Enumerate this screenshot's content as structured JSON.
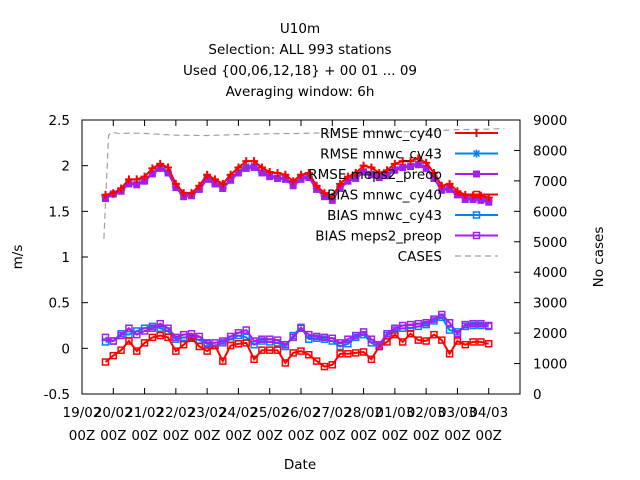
{
  "title_lines": [
    "U10m",
    "Selection: ALL    993 stations",
    "Used {00,06,12,18} + 00 01 ... 09",
    "Averaging window:  6h"
  ],
  "chart_data": {
    "type": "line",
    "xlabel": "Date",
    "ylabel": "m/s",
    "y2label": "No cases",
    "ylim": [
      -0.5,
      2.5
    ],
    "y2lim": [
      0,
      9000
    ],
    "y_ticks": [
      "-0.5",
      "0",
      "0.5",
      "1",
      "1.5",
      "2",
      "2.5"
    ],
    "y2_ticks": [
      "0",
      "1000",
      "2000",
      "3000",
      "4000",
      "5000",
      "6000",
      "7000",
      "8000",
      "9000"
    ],
    "xlim": [
      0,
      14
    ],
    "x_ticks": [
      {
        "line1": "19/02",
        "line2": "00Z"
      },
      {
        "line1": "20/02",
        "line2": "00Z"
      },
      {
        "line1": "21/02",
        "line2": "00Z"
      },
      {
        "line1": "22/02",
        "line2": "00Z"
      },
      {
        "line1": "23/02",
        "line2": "00Z"
      },
      {
        "line1": "24/02",
        "line2": "00Z"
      },
      {
        "line1": "25/02",
        "line2": "00Z"
      },
      {
        "line1": "26/02",
        "line2": "00Z"
      },
      {
        "line1": "27/02",
        "line2": "00Z"
      },
      {
        "line1": "28/02",
        "line2": "00Z"
      },
      {
        "line1": "01/03",
        "line2": "00Z"
      },
      {
        "line1": "02/03",
        "line2": "00Z"
      },
      {
        "line1": "03/03",
        "line2": "00Z"
      },
      {
        "line1": "04/03",
        "line2": "00Z"
      }
    ],
    "grid": false,
    "legend_position": "top-right",
    "x": [
      0.75,
      1.0,
      1.25,
      1.5,
      1.75,
      2.0,
      2.25,
      2.5,
      2.75,
      3.0,
      3.25,
      3.5,
      3.75,
      4.0,
      4.25,
      4.5,
      4.75,
      5.0,
      5.25,
      5.5,
      5.75,
      6.0,
      6.25,
      6.5,
      6.75,
      7.0,
      7.25,
      7.5,
      7.75,
      8.0,
      8.25,
      8.5,
      8.75,
      9.0,
      9.25,
      9.5,
      9.75,
      10.0,
      10.25,
      10.5,
      10.75,
      11.0,
      11.25,
      11.5,
      11.75,
      12.0,
      12.25,
      12.5,
      12.75,
      13.0
    ],
    "series": [
      {
        "name": "RMSE mnwc_cy40",
        "axis": "y1",
        "color": "#ff0000",
        "marker": "plus",
        "values": [
          1.68,
          1.7,
          1.75,
          1.85,
          1.85,
          1.88,
          1.97,
          2.02,
          1.98,
          1.8,
          1.7,
          1.7,
          1.78,
          1.9,
          1.85,
          1.8,
          1.9,
          1.98,
          2.05,
          2.05,
          1.98,
          1.93,
          1.92,
          1.9,
          1.83,
          1.9,
          1.92,
          1.78,
          1.7,
          1.66,
          1.8,
          1.88,
          1.92,
          2.0,
          1.98,
          1.92,
          1.95,
          2.02,
          2.05,
          2.05,
          2.08,
          2.03,
          1.92,
          1.78,
          1.8,
          1.72,
          1.68,
          1.67,
          1.67,
          1.65
        ]
      },
      {
        "name": "RMSE mnwc_cy43",
        "axis": "y1",
        "color": "#0080ff",
        "marker": "star",
        "values": [
          1.66,
          1.69,
          1.73,
          1.81,
          1.8,
          1.84,
          1.92,
          1.99,
          1.93,
          1.77,
          1.68,
          1.68,
          1.75,
          1.86,
          1.82,
          1.76,
          1.86,
          1.93,
          1.99,
          2.0,
          1.93,
          1.89,
          1.87,
          1.86,
          1.8,
          1.87,
          1.88,
          1.75,
          1.67,
          1.63,
          1.77,
          1.84,
          1.88,
          1.94,
          1.91,
          1.88,
          1.91,
          1.96,
          1.99,
          2.0,
          2.02,
          1.98,
          1.87,
          1.74,
          1.76,
          1.69,
          1.65,
          1.64,
          1.64,
          1.61
        ]
      },
      {
        "name": "RMSE meps2_preop",
        "axis": "y1",
        "color": "#a020f0",
        "marker": "filledsquare",
        "values": [
          1.64,
          1.69,
          1.72,
          1.8,
          1.79,
          1.83,
          1.91,
          1.97,
          1.92,
          1.76,
          1.66,
          1.67,
          1.74,
          1.85,
          1.8,
          1.75,
          1.84,
          1.92,
          1.97,
          1.98,
          1.92,
          1.88,
          1.86,
          1.85,
          1.78,
          1.85,
          1.87,
          1.74,
          1.66,
          1.62,
          1.75,
          1.83,
          1.86,
          1.93,
          1.9,
          1.87,
          1.89,
          1.95,
          1.98,
          1.99,
          2.01,
          1.97,
          1.86,
          1.73,
          1.74,
          1.68,
          1.63,
          1.63,
          1.62,
          1.6
        ]
      },
      {
        "name": "BIAS mnwc_cy40",
        "axis": "y1",
        "color": "#ff0000",
        "marker": "square",
        "values": [
          -0.15,
          -0.08,
          -0.02,
          0.08,
          -0.03,
          0.06,
          0.12,
          0.14,
          0.12,
          -0.03,
          0.04,
          0.11,
          0.02,
          -0.03,
          0.03,
          -0.14,
          0.03,
          0.05,
          0.06,
          -0.12,
          -0.02,
          -0.02,
          -0.02,
          -0.16,
          -0.05,
          -0.03,
          -0.07,
          -0.14,
          -0.2,
          -0.18,
          -0.06,
          -0.06,
          -0.05,
          -0.04,
          -0.12,
          0.02,
          0.07,
          0.15,
          0.07,
          0.16,
          0.09,
          0.08,
          0.15,
          0.09,
          -0.06,
          0.08,
          0.04,
          0.07,
          0.07,
          0.05
        ]
      },
      {
        "name": "BIAS mnwc_cy43",
        "axis": "y1",
        "color": "#0080ff",
        "marker": "square",
        "values": [
          0.07,
          0.08,
          0.16,
          0.15,
          0.19,
          0.22,
          0.24,
          0.22,
          0.19,
          0.1,
          0.12,
          0.12,
          0.09,
          0.05,
          0.03,
          0.06,
          0.1,
          0.14,
          0.12,
          0.04,
          0.08,
          0.07,
          0.06,
          0.02,
          0.14,
          0.23,
          0.1,
          0.11,
          0.1,
          0.08,
          0.02,
          0.05,
          0.12,
          0.15,
          0.06,
          0.02,
          0.14,
          0.2,
          0.22,
          0.22,
          0.24,
          0.26,
          0.3,
          0.34,
          0.2,
          0.18,
          0.24,
          0.25,
          0.25,
          0.24
        ]
      },
      {
        "name": "BIAS meps2_preop",
        "axis": "y1",
        "color": "#a020f0",
        "marker": "square",
        "values": [
          0.12,
          0.08,
          0.14,
          0.22,
          0.15,
          0.19,
          0.22,
          0.27,
          0.22,
          0.12,
          0.15,
          0.16,
          0.13,
          0.06,
          0.06,
          0.08,
          0.13,
          0.17,
          0.2,
          0.08,
          0.1,
          0.1,
          0.09,
          0.04,
          0.12,
          0.22,
          0.15,
          0.13,
          0.12,
          0.11,
          0.06,
          0.1,
          0.14,
          0.18,
          0.1,
          0.04,
          0.16,
          0.22,
          0.25,
          0.26,
          0.27,
          0.28,
          0.32,
          0.37,
          0.28,
          0.16,
          0.26,
          0.27,
          0.27,
          0.25
        ]
      },
      {
        "name": "CASES",
        "axis": "y2",
        "color": "#a0a0a0",
        "style": "dashed",
        "x": [
          0.7,
          0.85,
          0.95,
          1.2,
          1.5,
          2.0,
          2.5,
          3.0,
          4.0,
          5.0,
          6.0,
          7.0,
          8.0,
          9.0,
          10.0,
          11.0,
          12.0,
          13.0,
          13.5
        ],
        "values": [
          5100,
          8500,
          8600,
          8550,
          8570,
          8560,
          8530,
          8500,
          8490,
          8520,
          8550,
          8560,
          8580,
          8600,
          8610,
          8630,
          8680,
          8700,
          8720
        ]
      }
    ]
  }
}
